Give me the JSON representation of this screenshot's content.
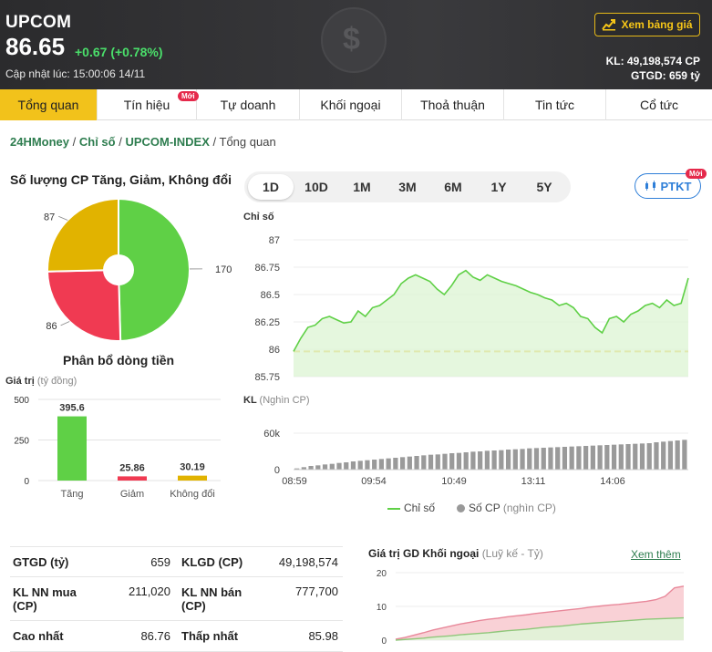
{
  "header": {
    "name": "UPCOM",
    "value": "86.65",
    "change": "+0.67 (+0.78%)",
    "updated": "Cập nhật lúc: 15:00:06 14/11",
    "board_button": "Xem bảng giá",
    "kl": "KL: 49,198,574 CP",
    "gtgd": "GTGD: 659 tỷ"
  },
  "tabs": [
    {
      "label": "Tổng quan",
      "active": true
    },
    {
      "label": "Tín hiệu",
      "badge": "Mới"
    },
    {
      "label": "Tự doanh"
    },
    {
      "label": "Khối ngoại"
    },
    {
      "label": "Thoả thuận"
    },
    {
      "label": "Tin tức"
    },
    {
      "label": "Cổ tức"
    }
  ],
  "breadcrumb": {
    "home": "24HMoney",
    "l2": "Chỉ số",
    "l3": "UPCOM-INDEX",
    "current": "Tổng quan"
  },
  "breadth": {
    "title": "Số lượng CP Tăng, Giảm, Không đổi",
    "up": 170,
    "down": 86,
    "unchanged": 87,
    "colors": {
      "up": "#5fd046",
      "down": "#f03a52",
      "unchanged": "#e1b300"
    }
  },
  "flow": {
    "title": "Phân bổ dòng tiền",
    "ylabel": "Giá trị",
    "yunit": "(tỷ đồng)",
    "yticks": [
      "500",
      "250",
      "0"
    ],
    "ymax": 500,
    "bars": [
      {
        "label": "Tăng",
        "value": 395.6,
        "text": "395.6",
        "color": "#5fd046"
      },
      {
        "label": "Giảm",
        "value": 25.86,
        "text": "25.86",
        "color": "#f03a52"
      },
      {
        "label": "Không đổi",
        "value": 30.19,
        "text": "30.19",
        "color": "#e1b300"
      }
    ]
  },
  "ranges": [
    "1D",
    "10D",
    "1M",
    "3M",
    "6M",
    "1Y",
    "5Y"
  ],
  "ptkt": {
    "label": "PTKT",
    "badge": "Mới"
  },
  "chart_data": {
    "type": "line",
    "ylabel": "Chỉ số",
    "yticks": [
      "87",
      "86.75",
      "86.5",
      "86.25",
      "86",
      "85.75"
    ],
    "ylim": [
      85.75,
      87
    ],
    "reference": 85.98,
    "values": [
      85.98,
      86.1,
      86.2,
      86.22,
      86.28,
      86.3,
      86.27,
      86.24,
      86.25,
      86.35,
      86.3,
      86.38,
      86.4,
      86.45,
      86.5,
      86.6,
      86.65,
      86.68,
      86.65,
      86.62,
      86.55,
      86.5,
      86.58,
      86.68,
      86.72,
      86.66,
      86.63,
      86.68,
      86.65,
      86.62,
      86.6,
      86.58,
      86.55,
      86.52,
      86.5,
      86.47,
      86.45,
      86.4,
      86.42,
      86.38,
      86.3,
      86.28,
      86.2,
      86.15,
      86.28,
      86.3,
      86.25,
      86.32,
      86.35,
      86.4,
      86.42,
      86.38,
      86.45,
      86.4,
      86.42,
      86.65
    ],
    "volume_label": "KL",
    "volume_unit": "(Nghìn CP)",
    "volume_ticks": [
      "60k",
      "0"
    ],
    "volume_max": 60000,
    "volume": [
      2000,
      4000,
      6000,
      7000,
      8500,
      9500,
      11000,
      12000,
      13500,
      14500,
      15500,
      16500,
      17500,
      18500,
      19500,
      20500,
      21500,
      22500,
      23500,
      24500,
      25000,
      26000,
      27000,
      27500,
      28500,
      29500,
      30000,
      31000,
      31500,
      32000,
      33000,
      33500,
      34000,
      35000,
      35500,
      36000,
      36500,
      37000,
      37500,
      38000,
      38500,
      39000,
      39500,
      40000,
      40500,
      41000,
      41500,
      42000,
      42500,
      43000,
      43500,
      45000,
      46000,
      47000,
      48000,
      49000
    ],
    "xticks": [
      "08:59",
      "09:54",
      "10:49",
      "13:11",
      "14:06"
    ],
    "legend": [
      "Chỉ số",
      "Số CP"
    ],
    "legend_unit": "(nghìn CP)"
  },
  "stats": [
    [
      {
        "label": "GTGD (tỷ)",
        "value": "659"
      },
      {
        "label": "KLGD (CP)",
        "value": "49,198,574"
      }
    ],
    [
      {
        "label": "KL NN mua (CP)",
        "value": "211,020"
      },
      {
        "label": "KL NN bán (CP)",
        "value": "777,700"
      }
    ],
    [
      {
        "label": "Cao nhất",
        "value": "86.76"
      },
      {
        "label": "Thấp nhất",
        "value": "85.98"
      }
    ]
  ],
  "foreign": {
    "title": "Giá trị GD Khối ngoại",
    "unit": "(Luỹ kế - Tỷ)",
    "more": "Xem thêm",
    "yticks": [
      "20",
      "10",
      "0"
    ],
    "ymax": 20,
    "sell": [
      0.3,
      0.8,
      1.5,
      2.2,
      3,
      3.6,
      4.2,
      4.8,
      5.3,
      5.8,
      6.2,
      6.5,
      6.9,
      7.2,
      7.5,
      7.9,
      8.2,
      8.5,
      8.8,
      9.1,
      9.4,
      9.8,
      10.1,
      10.4,
      10.6,
      10.9,
      11.2,
      11.5,
      12,
      13,
      15.5,
      16
    ],
    "buy": [
      0,
      0.2,
      0.4,
      0.6,
      0.9,
      1.1,
      1.3,
      1.6,
      1.8,
      2,
      2.2,
      2.5,
      2.8,
      3,
      3.2,
      3.5,
      3.8,
      4,
      4.2,
      4.5,
      4.8,
      5,
      5.2,
      5.4,
      5.6,
      5.8,
      6,
      6.2,
      6.3,
      6.4,
      6.5,
      6.6
    ]
  }
}
